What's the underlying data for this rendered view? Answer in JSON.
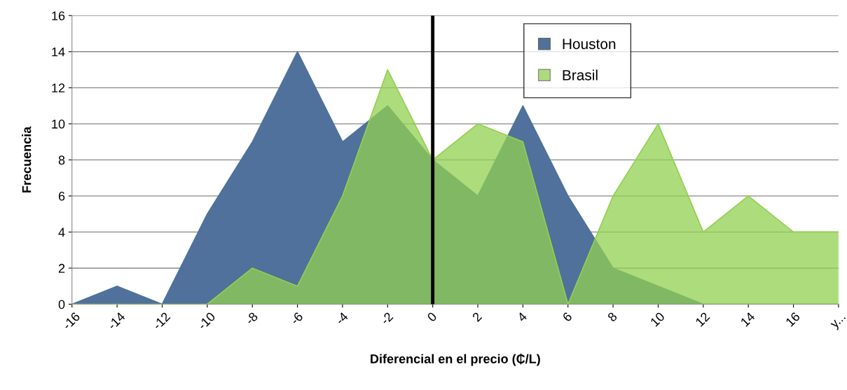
{
  "chart_data": {
    "type": "area",
    "xlabel": "Diferencial en el precio (₵/L)",
    "ylabel": "Frecuencia",
    "categories": [
      "-16",
      "-14",
      "-12",
      "-10",
      "-8",
      "-6",
      "-4",
      "-2",
      "0",
      "2",
      "4",
      "6",
      "8",
      "10",
      "12",
      "14",
      "16",
      "y..."
    ],
    "series": [
      {
        "name": "Houston",
        "color": "#4f719c",
        "values": [
          0,
          1,
          0,
          5,
          9,
          14,
          9,
          11,
          8,
          6,
          11,
          6,
          2,
          1,
          0,
          0,
          0,
          0
        ]
      },
      {
        "name": "Brasil",
        "color": "#92d050",
        "values": [
          0,
          0,
          0,
          0,
          2,
          1,
          6,
          13,
          8,
          10,
          9,
          0,
          6,
          10,
          4,
          6,
          4,
          4
        ]
      }
    ],
    "ylim": [
      0,
      16
    ],
    "yticks": [
      0,
      2,
      4,
      6,
      8,
      10,
      12,
      14,
      16
    ],
    "grid": "y",
    "legend": "top right",
    "ref_lines": [
      {
        "axis": "x",
        "value": "0",
        "color": "#000000"
      }
    ]
  }
}
